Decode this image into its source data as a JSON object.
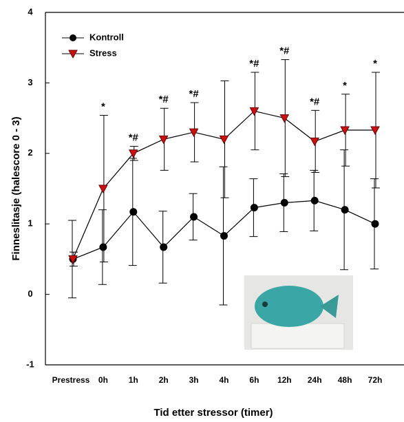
{
  "chart_data": {
    "type": "line",
    "xlabel": "Tid etter stressor (timer)",
    "ylabel": "Finneslitasje (halescore 0 - 3)",
    "categories": [
      "Prestress",
      "0h",
      "1h",
      "2h",
      "3h",
      "4h",
      "6h",
      "12h",
      "24h",
      "48h",
      "72h"
    ],
    "series": [
      {
        "name": "Kontroll",
        "color": "#000000",
        "marker": "circle",
        "values": [
          0.5,
          0.67,
          1.17,
          0.67,
          1.1,
          0.83,
          1.23,
          1.3,
          1.33,
          1.2,
          1.0
        ],
        "errors": [
          0.55,
          0.53,
          0.76,
          0.51,
          0.33,
          0.98,
          0.41,
          0.41,
          0.43,
          0.85,
          0.64
        ]
      },
      {
        "name": "Stress",
        "color": "#cc1010",
        "marker": "triangle-down",
        "values": [
          0.5,
          1.5,
          2.0,
          2.2,
          2.3,
          2.2,
          2.6,
          2.5,
          2.17,
          2.33,
          2.33
        ],
        "errors": [
          0.1,
          1.04,
          0.1,
          0.44,
          0.42,
          0.83,
          0.55,
          0.83,
          0.44,
          0.51,
          0.82
        ]
      }
    ],
    "annotations": [
      null,
      "*",
      "*#",
      "*#",
      "*#",
      null,
      "*#",
      "*#",
      "*#",
      "*",
      "*"
    ],
    "ylim": [
      -1,
      4
    ],
    "yticks": [
      -1,
      0,
      1,
      2,
      3,
      4
    ]
  }
}
